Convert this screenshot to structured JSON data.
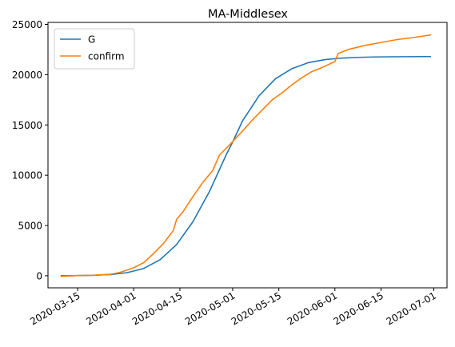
{
  "chart_data": {
    "type": "line",
    "title": "MA-Middlesex",
    "xlabel": "",
    "ylabel": "",
    "x_axis_type": "date",
    "xlim": [
      "2020-03-06",
      "2020-07-05"
    ],
    "ylim": [
      -1200,
      25200
    ],
    "x_ticks": [
      "2020-03-15",
      "2020-04-01",
      "2020-04-15",
      "2020-05-01",
      "2020-05-15",
      "2020-06-01",
      "2020-06-15",
      "2020-07-01"
    ],
    "y_ticks": [
      0,
      5000,
      10000,
      15000,
      20000,
      25000
    ],
    "y_tick_labels": [
      "0",
      "5000",
      "10000",
      "15000",
      "20000",
      "25000"
    ],
    "grid": false,
    "legend_position": "top-left",
    "series": [
      {
        "name": "G",
        "color": "#1f77b4",
        "points": [
          [
            "2020-03-10",
            10
          ],
          [
            "2020-03-15",
            20
          ],
          [
            "2020-03-20",
            50
          ],
          [
            "2020-03-25",
            120
          ],
          [
            "2020-03-30",
            310
          ],
          [
            "2020-04-04",
            720
          ],
          [
            "2020-04-09",
            1600
          ],
          [
            "2020-04-14",
            3100
          ],
          [
            "2020-04-19",
            5400
          ],
          [
            "2020-04-24",
            8400
          ],
          [
            "2020-04-29",
            12000
          ],
          [
            "2020-05-01",
            13300
          ],
          [
            "2020-05-04",
            15400
          ],
          [
            "2020-05-09",
            17900
          ],
          [
            "2020-05-14",
            19600
          ],
          [
            "2020-05-19",
            20600
          ],
          [
            "2020-05-24",
            21200
          ],
          [
            "2020-05-29",
            21500
          ],
          [
            "2020-06-03",
            21650
          ],
          [
            "2020-06-08",
            21720
          ],
          [
            "2020-06-13",
            21760
          ],
          [
            "2020-06-18",
            21780
          ],
          [
            "2020-06-23",
            21790
          ],
          [
            "2020-06-28",
            21800
          ],
          [
            "2020-06-30",
            21800
          ]
        ]
      },
      {
        "name": "confirm",
        "color": "#ff7f0e",
        "points": [
          [
            "2020-03-10",
            -50
          ],
          [
            "2020-03-15",
            20
          ],
          [
            "2020-03-20",
            60
          ],
          [
            "2020-03-25",
            150
          ],
          [
            "2020-03-28",
            350
          ],
          [
            "2020-04-01",
            800
          ],
          [
            "2020-04-04",
            1300
          ],
          [
            "2020-04-07",
            2200
          ],
          [
            "2020-04-10",
            3200
          ],
          [
            "2020-04-13",
            4500
          ],
          [
            "2020-04-14",
            5600
          ],
          [
            "2020-04-16",
            6400
          ],
          [
            "2020-04-19",
            7900
          ],
          [
            "2020-04-22",
            9300
          ],
          [
            "2020-04-25",
            10500
          ],
          [
            "2020-04-27",
            12000
          ],
          [
            "2020-04-30",
            13000
          ],
          [
            "2020-05-04",
            14400
          ],
          [
            "2020-05-07",
            15500
          ],
          [
            "2020-05-10",
            16500
          ],
          [
            "2020-05-13",
            17500
          ],
          [
            "2020-05-16",
            18200
          ],
          [
            "2020-05-19",
            19000
          ],
          [
            "2020-05-22",
            19700
          ],
          [
            "2020-05-25",
            20300
          ],
          [
            "2020-05-28",
            20700
          ],
          [
            "2020-06-01",
            21300
          ],
          [
            "2020-06-02",
            22100
          ],
          [
            "2020-06-05",
            22500
          ],
          [
            "2020-06-10",
            22900
          ],
          [
            "2020-06-15",
            23200
          ],
          [
            "2020-06-20",
            23500
          ],
          [
            "2020-06-25",
            23700
          ],
          [
            "2020-06-30",
            23950
          ]
        ]
      }
    ]
  }
}
